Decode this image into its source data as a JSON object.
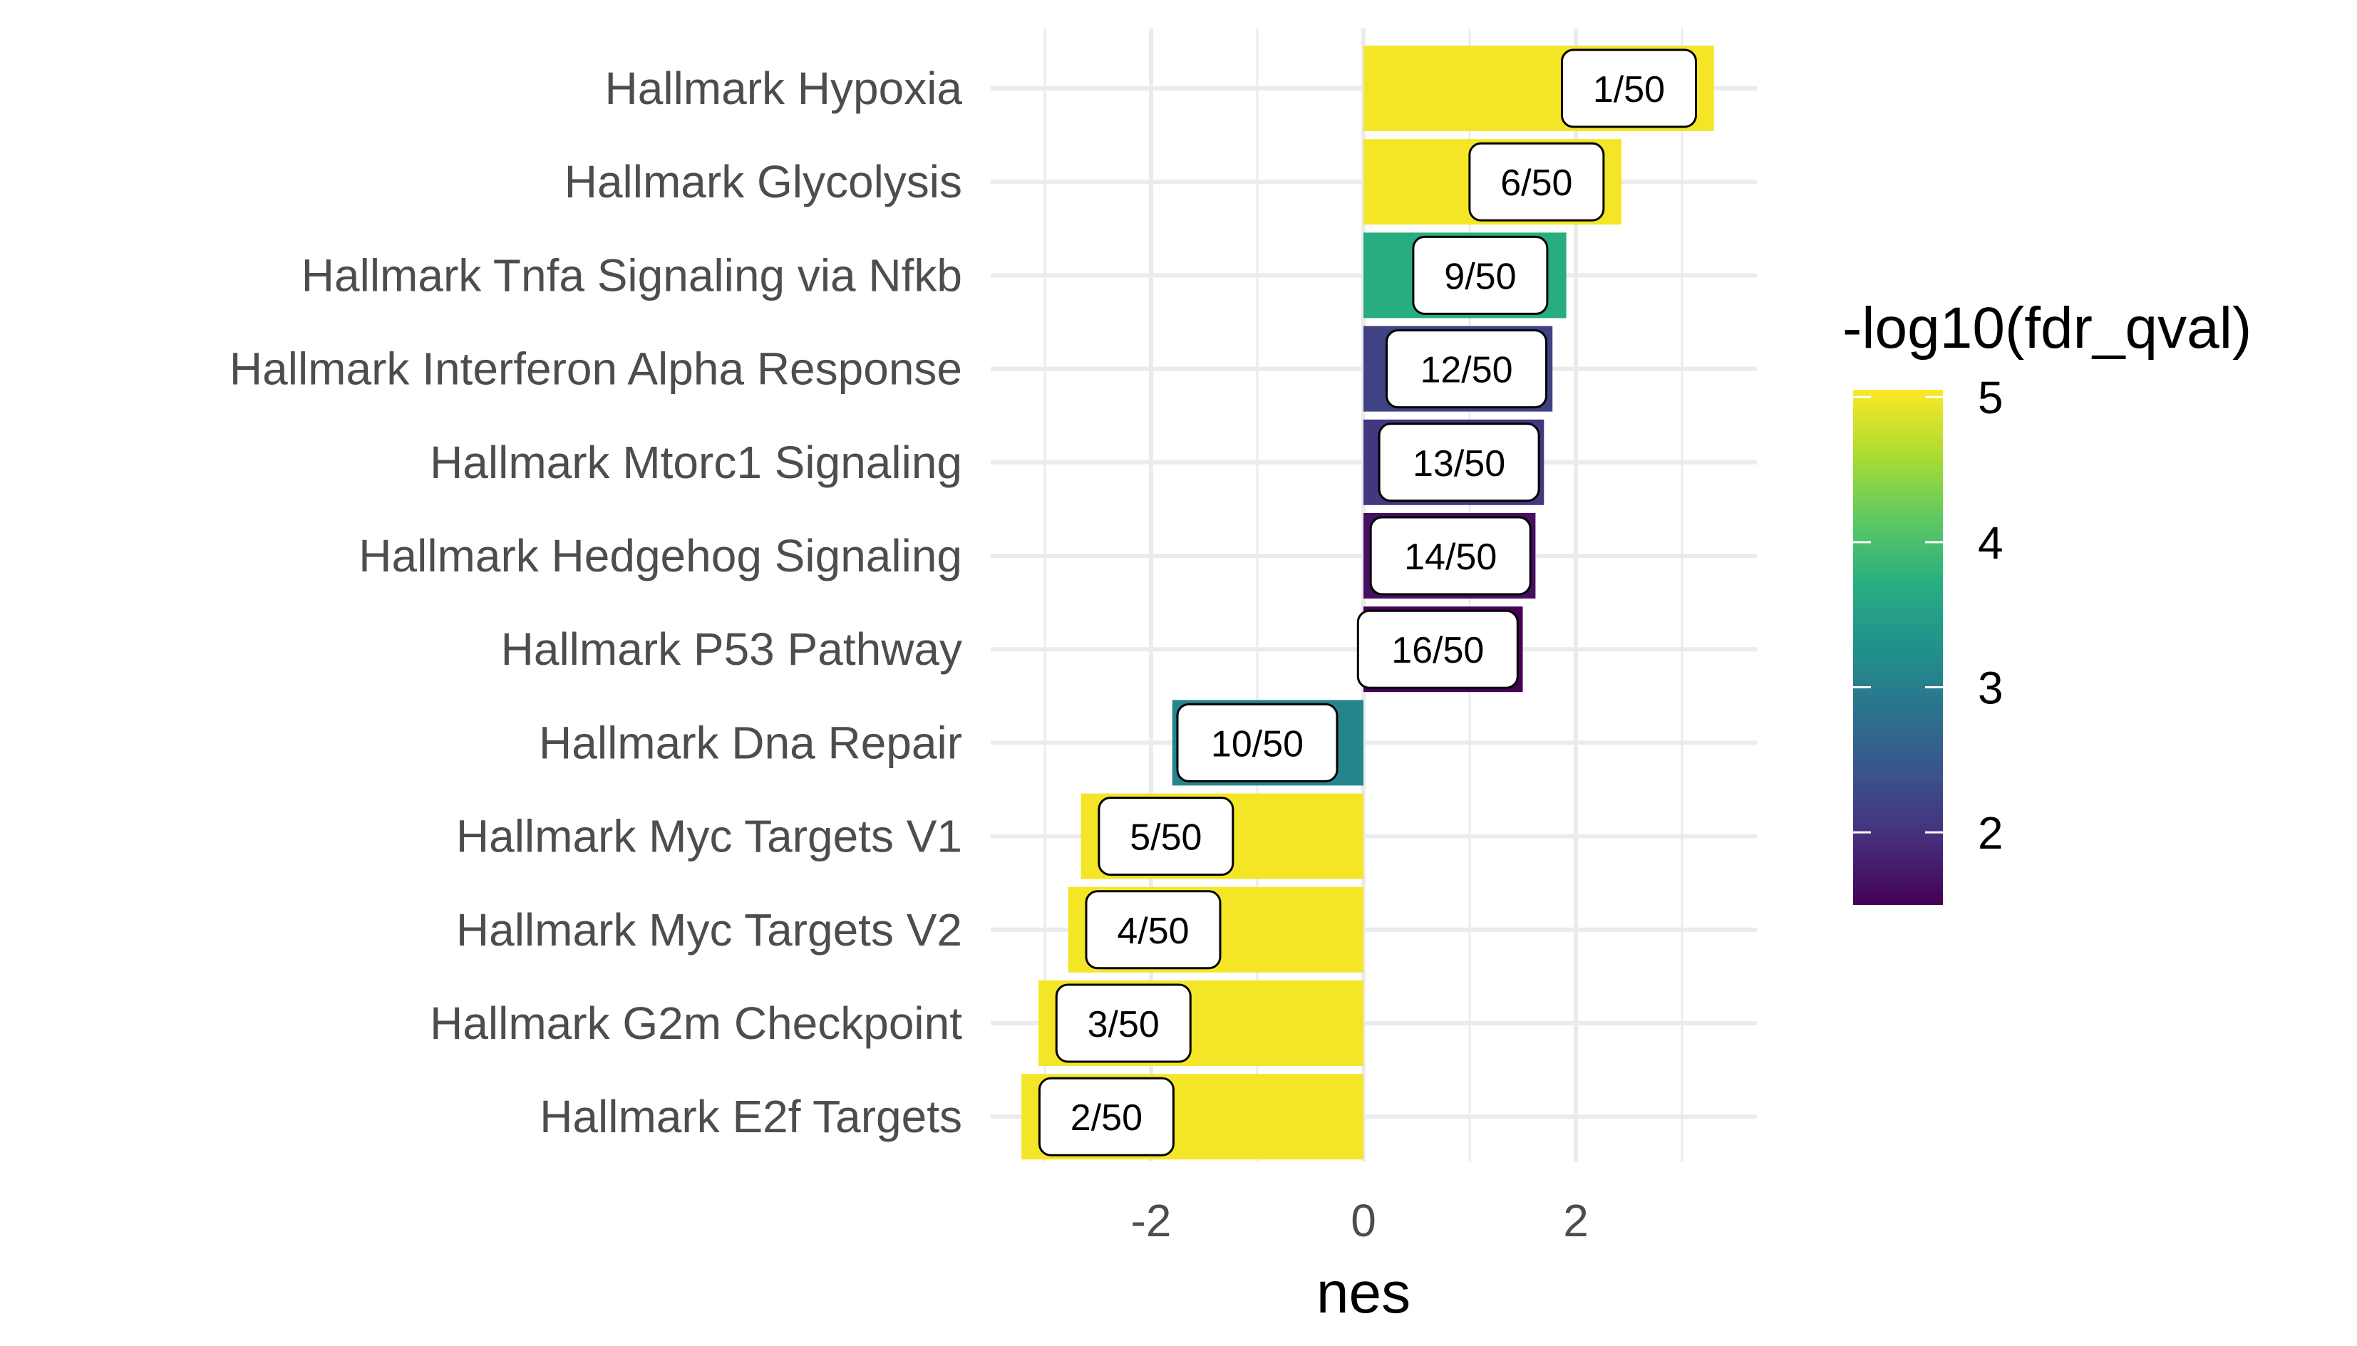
{
  "chart_data": {
    "type": "bar",
    "orientation": "horizontal",
    "xlabel": "nes",
    "ylabel": "",
    "xlim": [
      -3.5,
      3.6
    ],
    "x_ticks": [
      -2,
      0,
      2
    ],
    "x_tick_labels": [
      "-2",
      "0",
      "2"
    ],
    "grid": true,
    "legend": {
      "title": "-log10(fdr_qval)",
      "placement": "right",
      "type": "colorbar",
      "range": [
        1.5,
        5.05
      ],
      "ticks": [
        2,
        3,
        4,
        5
      ],
      "tick_labels": [
        "2",
        "3",
        "4",
        "5"
      ],
      "palette": "viridis"
    },
    "categories": [
      "Hallmark Hypoxia",
      "Hallmark Glycolysis",
      "Hallmark Tnfa Signaling via Nfkb",
      "Hallmark Interferon Alpha Response",
      "Hallmark Mtorc1 Signaling",
      "Hallmark Hedgehog Signaling",
      "Hallmark P53 Pathway",
      "Hallmark Dna Repair",
      "Hallmark Myc Targets V1",
      "Hallmark Myc Targets V2",
      "Hallmark G2m Checkpoint",
      "Hallmark E2f Targets"
    ],
    "values": [
      3.3,
      2.43,
      1.91,
      1.78,
      1.7,
      1.62,
      1.5,
      -1.8,
      -2.66,
      -2.78,
      -3.06,
      -3.22
    ],
    "color_values": [
      5.0,
      5.0,
      3.7,
      2.2,
      2.05,
      1.65,
      1.5,
      3.1,
      5.0,
      5.0,
      5.0,
      5.0
    ],
    "data_labels": [
      "1/50",
      "6/50",
      "9/50",
      "12/50",
      "13/50",
      "14/50",
      "16/50",
      "10/50",
      "5/50",
      "4/50",
      "3/50",
      "2/50"
    ],
    "data_label_x": [
      2.5,
      1.63,
      1.1,
      0.97,
      0.9,
      0.82,
      0.7,
      -1.0,
      -1.86,
      -1.98,
      -2.26,
      -2.42
    ]
  }
}
